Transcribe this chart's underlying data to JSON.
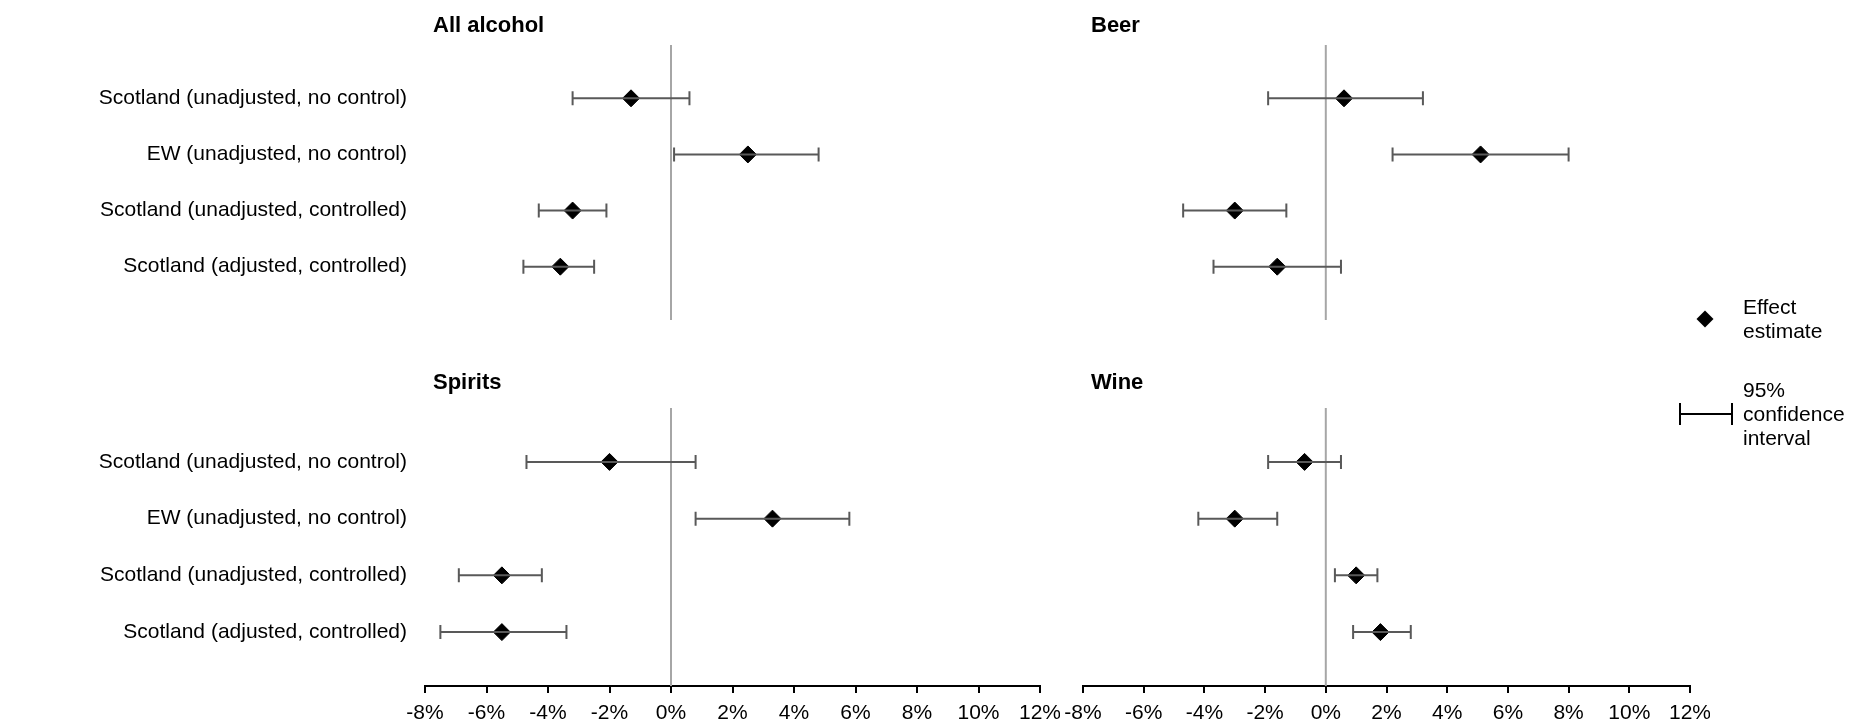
{
  "chart_data": [
    {
      "type": "scatter",
      "orientation": "horizontal",
      "title": "All alcohol",
      "categories": [
        "Scotland (unadjusted, no control)",
        "EW (unadjusted, no control)",
        "Scotland (unadjusted, controlled)",
        "Scotland (adjusted, controlled)"
      ],
      "marker": "diamond",
      "tick_labels": "y",
      "xlim": [
        -8,
        12
      ],
      "ref_lines": [
        {
          "axis": "x",
          "value": 0,
          "color": "#a6a6a6"
        }
      ],
      "series": [
        {
          "color": "#000000",
          "values": [
            -1.3,
            2.5,
            -3.2,
            -3.6
          ],
          "errors": [
            [
              -3.2,
              0.6
            ],
            [
              0.1,
              4.8
            ],
            [
              -4.3,
              -2.1
            ],
            [
              -4.8,
              -2.5
            ]
          ]
        }
      ]
    },
    {
      "type": "scatter",
      "orientation": "horizontal",
      "title": "Spirits",
      "categories": [
        "Scotland (unadjusted, no control)",
        "EW (unadjusted, no control)",
        "Scotland (unadjusted, controlled)",
        "Scotland (adjusted, controlled)"
      ],
      "marker": "diamond",
      "xlim": [
        -8,
        12
      ],
      "xticks": [
        {
          "value": -8,
          "label": "-8%"
        },
        {
          "value": -6,
          "label": "-6%"
        },
        {
          "value": -4,
          "label": "-4%"
        },
        {
          "value": -2,
          "label": "-2%"
        },
        {
          "value": 0,
          "label": "0%"
        },
        {
          "value": 2,
          "label": "2%"
        },
        {
          "value": 4,
          "label": "4%"
        },
        {
          "value": 6,
          "label": "6%"
        },
        {
          "value": 8,
          "label": "8%"
        },
        {
          "value": 10,
          "label": "10%"
        },
        {
          "value": 12,
          "label": "12%"
        }
      ],
      "ref_lines": [
        {
          "axis": "x",
          "value": 0,
          "color": "#a6a6a6"
        }
      ],
      "series": [
        {
          "color": "#000000",
          "values": [
            -2.0,
            3.3,
            -5.5,
            -5.5
          ],
          "errors": [
            [
              -4.7,
              0.8
            ],
            [
              0.8,
              5.8
            ],
            [
              -6.9,
              -4.2
            ],
            [
              -7.5,
              -3.4
            ]
          ]
        }
      ]
    },
    {
      "type": "scatter",
      "orientation": "horizontal",
      "title": "Beer",
      "categories": [
        null,
        null,
        null,
        null
      ],
      "marker": "diamond",
      "tick_labels": false,
      "xlim": [
        -8,
        12
      ],
      "ref_lines": [
        {
          "axis": "x",
          "value": 0,
          "color": "#a6a6a6"
        }
      ],
      "legend": "right",
      "annotations": [
        "95% confidence interval"
      ],
      "series": [
        {
          "name": "Effect estimate",
          "color": "#000000",
          "values": [
            0.6,
            5.1,
            -3.0,
            -1.6
          ],
          "errors": [
            [
              -1.9,
              3.2
            ],
            [
              2.2,
              8.0
            ],
            [
              -4.7,
              -1.3
            ],
            [
              -3.7,
              0.5
            ]
          ]
        }
      ]
    },
    {
      "type": "scatter",
      "orientation": "horizontal",
      "title": "Wine",
      "categories": [
        null,
        null,
        null,
        null
      ],
      "marker": "diamond",
      "tick_labels": "x",
      "xlim": [
        -8,
        12
      ],
      "xticks": [
        {
          "value": -8,
          "label": "-8%"
        },
        {
          "value": -6,
          "label": "-6%"
        },
        {
          "value": -4,
          "label": "-4%"
        },
        {
          "value": -2,
          "label": "-2%"
        },
        {
          "value": 0,
          "label": "0%"
        },
        {
          "value": 2,
          "label": "2%"
        },
        {
          "value": 4,
          "label": "4%"
        },
        {
          "value": 6,
          "label": "6%"
        },
        {
          "value": 8,
          "label": "8%"
        },
        {
          "value": 10,
          "label": "10%"
        },
        {
          "value": 12,
          "label": "12%"
        }
      ],
      "ref_lines": [
        {
          "axis": "x",
          "value": 0,
          "color": "#a6a6a6"
        }
      ],
      "series": [
        {
          "color": "#000000",
          "values": [
            -0.7,
            -3.0,
            1.0,
            1.8
          ],
          "errors": [
            [
              -1.9,
              0.5
            ],
            [
              -4.2,
              -1.6
            ],
            [
              0.3,
              1.7
            ],
            [
              0.9,
              2.8
            ]
          ]
        }
      ]
    }
  ]
}
